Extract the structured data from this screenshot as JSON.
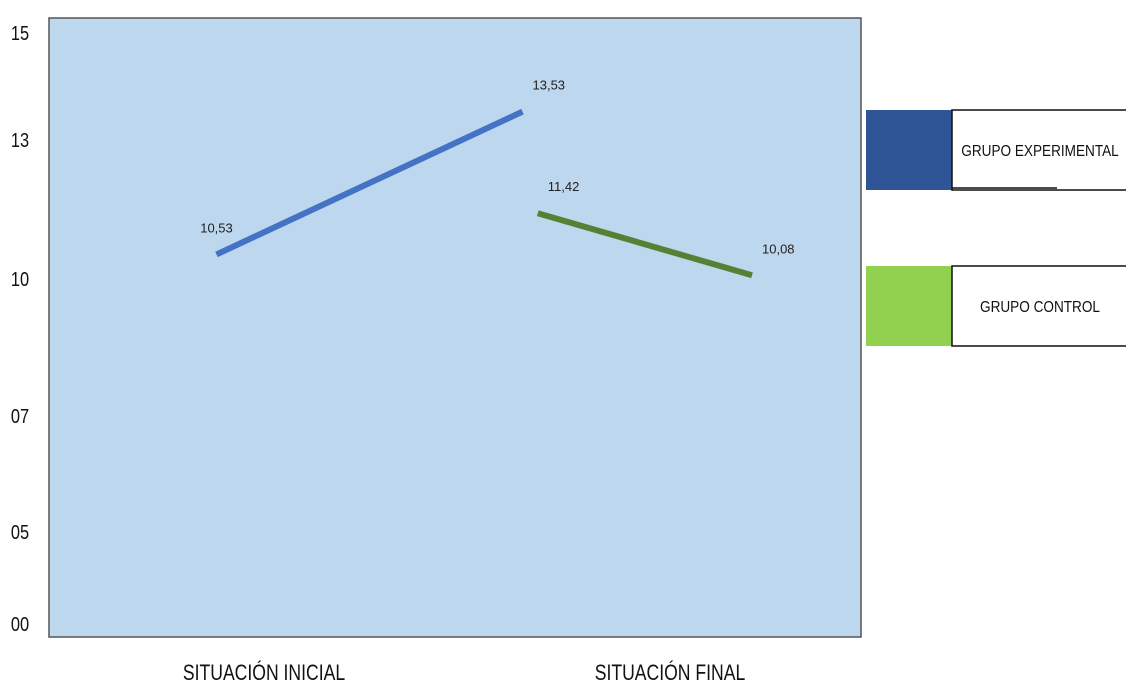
{
  "chart_data": {
    "type": "line",
    "title": "",
    "xlabel": "",
    "ylabel": "",
    "categories": [
      "SITUACIÓN INICIAL",
      "SITUACIÓN FINAL"
    ],
    "y_tick_labels": [
      "00",
      "05",
      "07",
      "10",
      "13",
      "15"
    ],
    "ylim": [
      0,
      15
    ],
    "grid": false,
    "legend_position": "right",
    "plot_background": "#bdd7ee",
    "series": [
      {
        "name": "GRUPO EXPERIMENTAL",
        "color": "#4472c4",
        "legend_color": "#2f5597",
        "points": [
          {
            "x": 0.25,
            "y": 10.53,
            "label": "10,53"
          },
          {
            "x": 1.25,
            "y": 13.53,
            "label": "13,53"
          }
        ]
      },
      {
        "name": "GRUPO CONTROL",
        "color": "#548235",
        "legend_color": "#92d050",
        "points": [
          {
            "x": 1.3,
            "y": 11.42,
            "label": "11,42"
          },
          {
            "x": 2.0,
            "y": 10.08,
            "label": "10,08"
          }
        ]
      }
    ]
  }
}
